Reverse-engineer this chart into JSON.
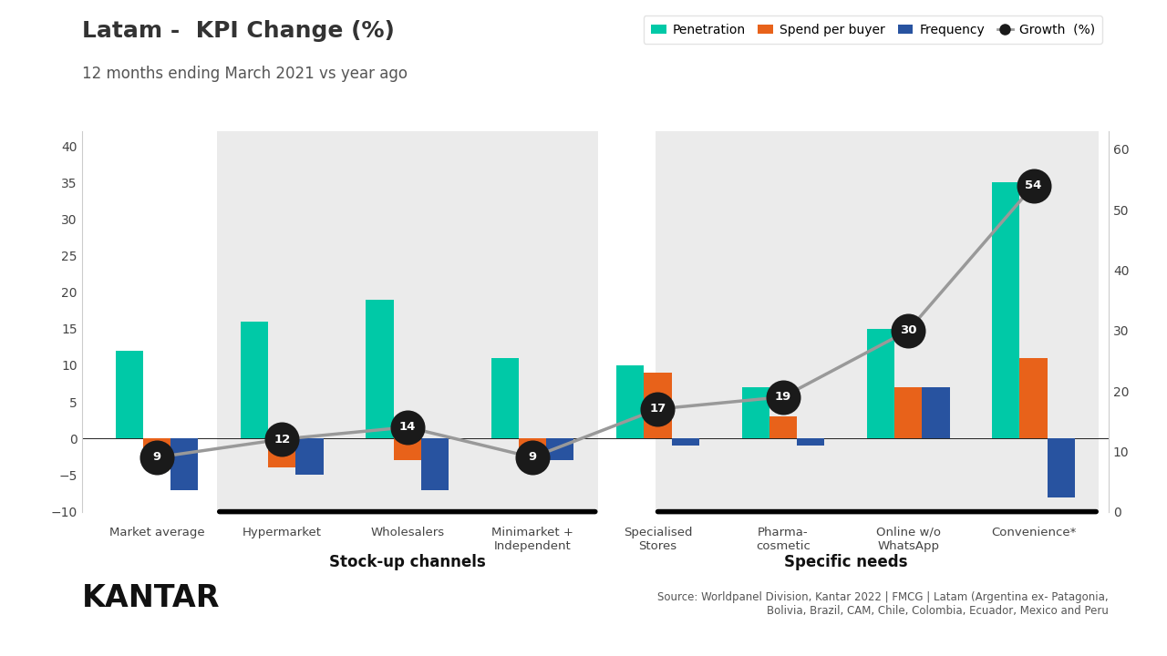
{
  "categories": [
    "Market average",
    "Hypermarket",
    "Wholesalers",
    "Minimarket +\nIndependent",
    "Specialised\nStores",
    "Pharma-\ncosmetic",
    "Online w/o\nWhatsApp",
    "Convenience*"
  ],
  "penetration": [
    12,
    16,
    19,
    11,
    10,
    7,
    15,
    35
  ],
  "spend_per_buyer": [
    -2,
    -4,
    -3,
    -2,
    9,
    3,
    7,
    11
  ],
  "frequency": [
    -7,
    -5,
    -7,
    -3,
    -1,
    -1,
    7,
    -8
  ],
  "growth": [
    9,
    12,
    14,
    9,
    17,
    19,
    30,
    54
  ],
  "color_penetration": "#00C9A7",
  "color_spend": "#E8621A",
  "color_frequency": "#2853A0",
  "color_growth_line": "#999999",
  "color_growth_dot": "#1a1a1a",
  "title": "Latam -  KPI Change (%)",
  "subtitle": "12 months ending March 2021 vs year ago",
  "ylim_left": [
    -10,
    42
  ],
  "ylim_right": [
    0,
    63
  ],
  "yticks_left": [
    -10,
    -5,
    0,
    5,
    10,
    15,
    20,
    25,
    30,
    35,
    40
  ],
  "yticks_right": [
    0,
    10,
    20,
    30,
    40,
    50,
    60
  ],
  "background_shaded": "#EBEBEB",
  "stock_up_span": [
    0.48,
    3.52
  ],
  "specific_span": [
    3.98,
    7.52
  ],
  "bar_width": 0.22,
  "source_text": "Source: Worldpanel Division, Kantar 2022 | FMCG | Latam (Argentina ex- Patagonia,\nBolivia, Brazil, CAM, Chile, Colombia, Ecuador, Mexico and Peru"
}
